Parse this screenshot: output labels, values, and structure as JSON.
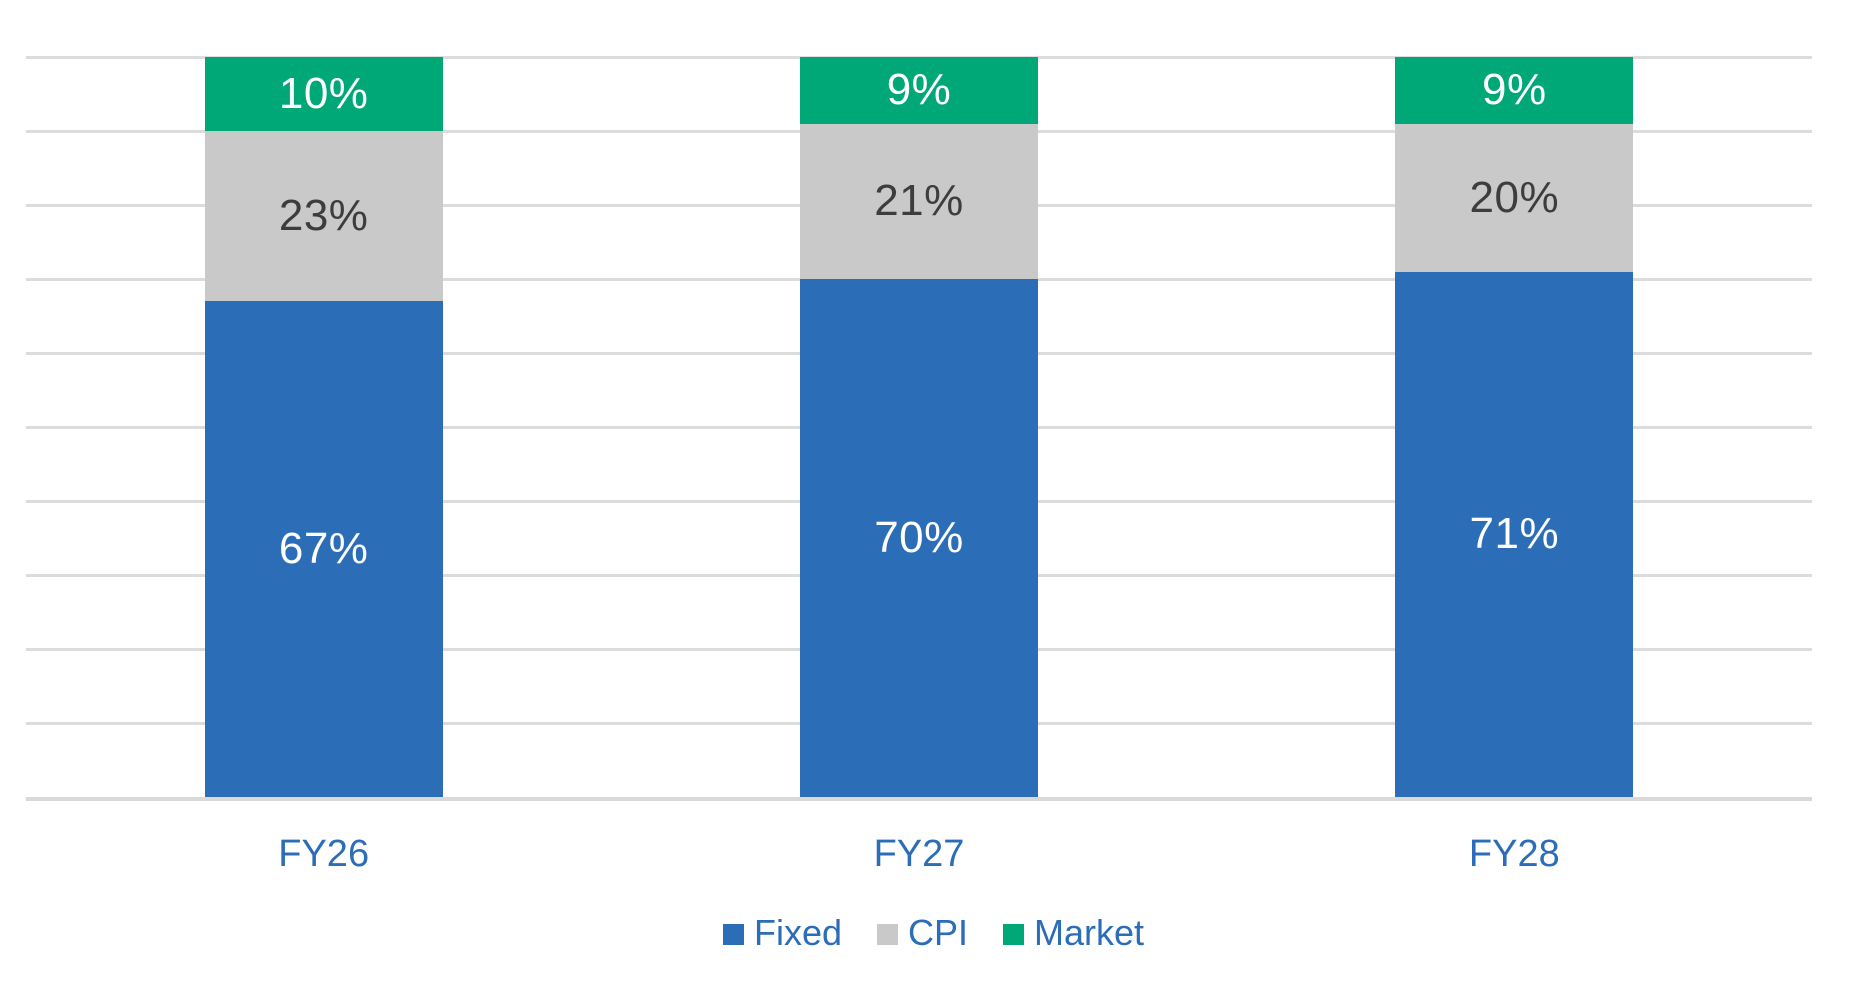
{
  "chart_data": {
    "type": "bar",
    "stacked": true,
    "title": "",
    "categories": [
      "FY26",
      "FY27",
      "FY28"
    ],
    "series": [
      {
        "name": "Fixed",
        "values": [
          67,
          70,
          71
        ],
        "color": "#2C6DB7",
        "label_color": "#FFFFFF"
      },
      {
        "name": "CPI",
        "values": [
          23,
          21,
          20
        ],
        "color": "#C9C9C9",
        "label_color": "#3D3D3D"
      },
      {
        "name": "Market",
        "values": [
          10,
          9,
          9
        ],
        "color": "#00A878",
        "label_color": "#FFFFFF"
      }
    ],
    "value_suffix": "%",
    "ylim": [
      0,
      100
    ],
    "grid": {
      "visible": true,
      "step": 10,
      "color": "#DCDCDC",
      "axis_color": "#D9D9D9"
    },
    "legend": {
      "position": "bottom",
      "entries": [
        "Fixed",
        "CPI",
        "Market"
      ],
      "text_color": "#2B6DB8"
    },
    "category_label_color": "#2B6DB8"
  }
}
